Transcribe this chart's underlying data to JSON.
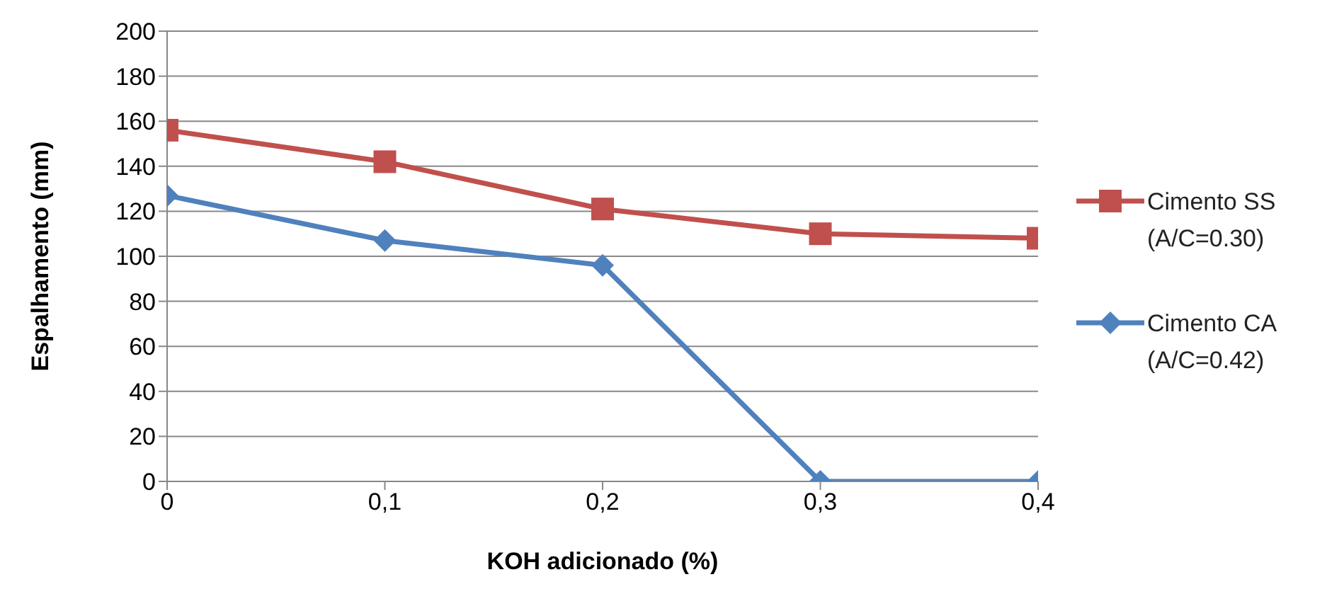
{
  "chart_data": {
    "type": "line",
    "xlabel": "KOH adicionado (%)",
    "ylabel": "Espalhamento (mm)",
    "x": [
      0,
      0.1,
      0.2,
      0.3,
      0.4
    ],
    "series": [
      {
        "name": "Cimento SS (A/C=0.30)",
        "color": "#c0504d",
        "marker": "square",
        "values": [
          156,
          142,
          121,
          110,
          108
        ]
      },
      {
        "name": "Cimento CA (A/C=0.42)",
        "color": "#4f81bd",
        "marker": "diamond",
        "values": [
          127,
          107,
          96,
          0,
          0
        ]
      }
    ],
    "xlim": [
      0,
      0.4
    ],
    "xticks": [
      0,
      {
        "value": 0.1,
        "label": "0,1"
      },
      {
        "value": 0.2,
        "label": "0,2"
      },
      {
        "value": 0.3,
        "label": "0,3"
      },
      {
        "value": 0.4,
        "label": "0,4"
      }
    ],
    "ylim": [
      0,
      200
    ],
    "yticks": [
      0,
      20,
      40,
      60,
      80,
      100,
      120,
      140,
      160,
      180,
      200
    ],
    "grid": "y",
    "legend": "right"
  }
}
